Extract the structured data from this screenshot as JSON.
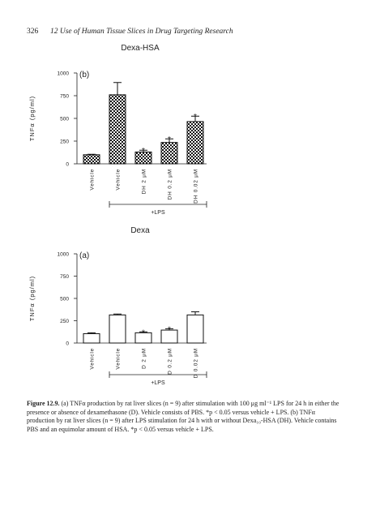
{
  "header": {
    "page_number": "326",
    "running_title": "12  Use of Human Tissue Slices in Drug Targeting Research"
  },
  "chart_data": [
    {
      "type": "bar",
      "title": "Dexa-HSA",
      "panel_label": "(b)",
      "y_label": "TNFα (pg/ml)",
      "categories": [
        "Vehicle",
        "Vehicle",
        "DH 2 μM",
        "DH 0.2 μM",
        "DH 0.02 μM"
      ],
      "values": [
        100,
        760,
        130,
        235,
        465
      ],
      "errors": [
        5,
        135,
        20,
        40,
        60
      ],
      "significance": [
        null,
        null,
        "*",
        "*",
        "*"
      ],
      "group_label": "+LPS",
      "fill_pattern": "checker",
      "color": "#111111",
      "ylim": [
        0,
        1000
      ],
      "yticks": [
        0,
        250,
        500,
        750,
        1000
      ]
    },
    {
      "type": "bar",
      "title": "Dexa",
      "panel_label": "(a)",
      "y_label": "TNFα (pg/ml)",
      "categories": [
        "Vehicle",
        "Vehicle",
        "D 2 μM",
        "D 0.2 μM",
        "D 0.02 μM"
      ],
      "values": [
        105,
        315,
        115,
        145,
        315
      ],
      "errors": [
        10,
        10,
        10,
        15,
        35
      ],
      "significance": [
        null,
        null,
        "*",
        "*",
        null
      ],
      "group_label": "+LPS",
      "fill_pattern": "none",
      "color": "#111111",
      "ylim": [
        0,
        1000
      ],
      "yticks": [
        0,
        250,
        500,
        750,
        1000
      ]
    }
  ],
  "caption": {
    "label": "Figure 12.9.",
    "text": "(a) TNFα production by rat liver slices (n = 9) after stimulation with 100 μg ml⁻¹ LPS for 24 h in either the presence or absence of dexamethasone (D). Vehicle consists of PBS. *p < 0.05 versus vehicle + LPS. (b) TNFα production by rat liver slices (n = 9) after LPS stimulation for 24 h with or without Dexa₁₀-HSA (DH). Vehicle contains PBS and an equimolar amount of HSA. *p < 0.05 versus vehicle + LPS."
  }
}
